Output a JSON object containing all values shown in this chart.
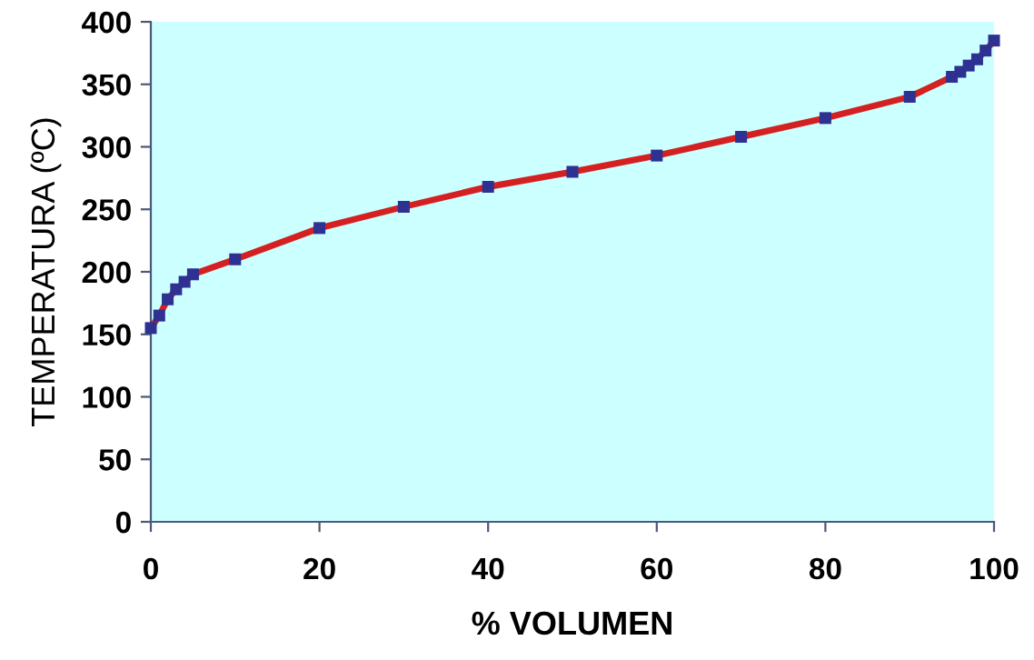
{
  "chart_data": {
    "type": "line",
    "xlabel": "% VOLUMEN",
    "ylabel": "TEMPERATURA (ºC)",
    "xlim": [
      0,
      100
    ],
    "ylim": [
      0,
      400
    ],
    "xticks": [
      0,
      20,
      40,
      60,
      80,
      100
    ],
    "yticks": [
      0,
      50,
      100,
      150,
      200,
      250,
      300,
      350,
      400
    ],
    "grid": false,
    "marker": "square",
    "line_style": "solid",
    "x": [
      0,
      1,
      2,
      3,
      4,
      5,
      10,
      20,
      30,
      40,
      50,
      60,
      70,
      80,
      90,
      95,
      96,
      97,
      98,
      99,
      100
    ],
    "series": [
      {
        "color": "#d42020",
        "colors": [
          "#2e3192",
          "#2e3192",
          "#2e3192",
          "#2e3192",
          "#2e3192",
          "#2e3192",
          "#2e3192",
          "#2e3192",
          "#2e3192",
          "#2e3192",
          "#2e3192",
          "#2e3192",
          "#2e3192",
          "#2e3192",
          "#2e3192",
          "#2e3192",
          "#2e3192",
          "#2e3192",
          "#2e3192",
          "#2e3192",
          "#2e3192"
        ],
        "values": [
          155,
          165,
          178,
          186,
          192,
          198,
          210,
          235,
          252,
          268,
          280,
          293,
          308,
          323,
          340,
          356,
          360,
          365,
          370,
          377,
          385
        ]
      }
    ]
  }
}
